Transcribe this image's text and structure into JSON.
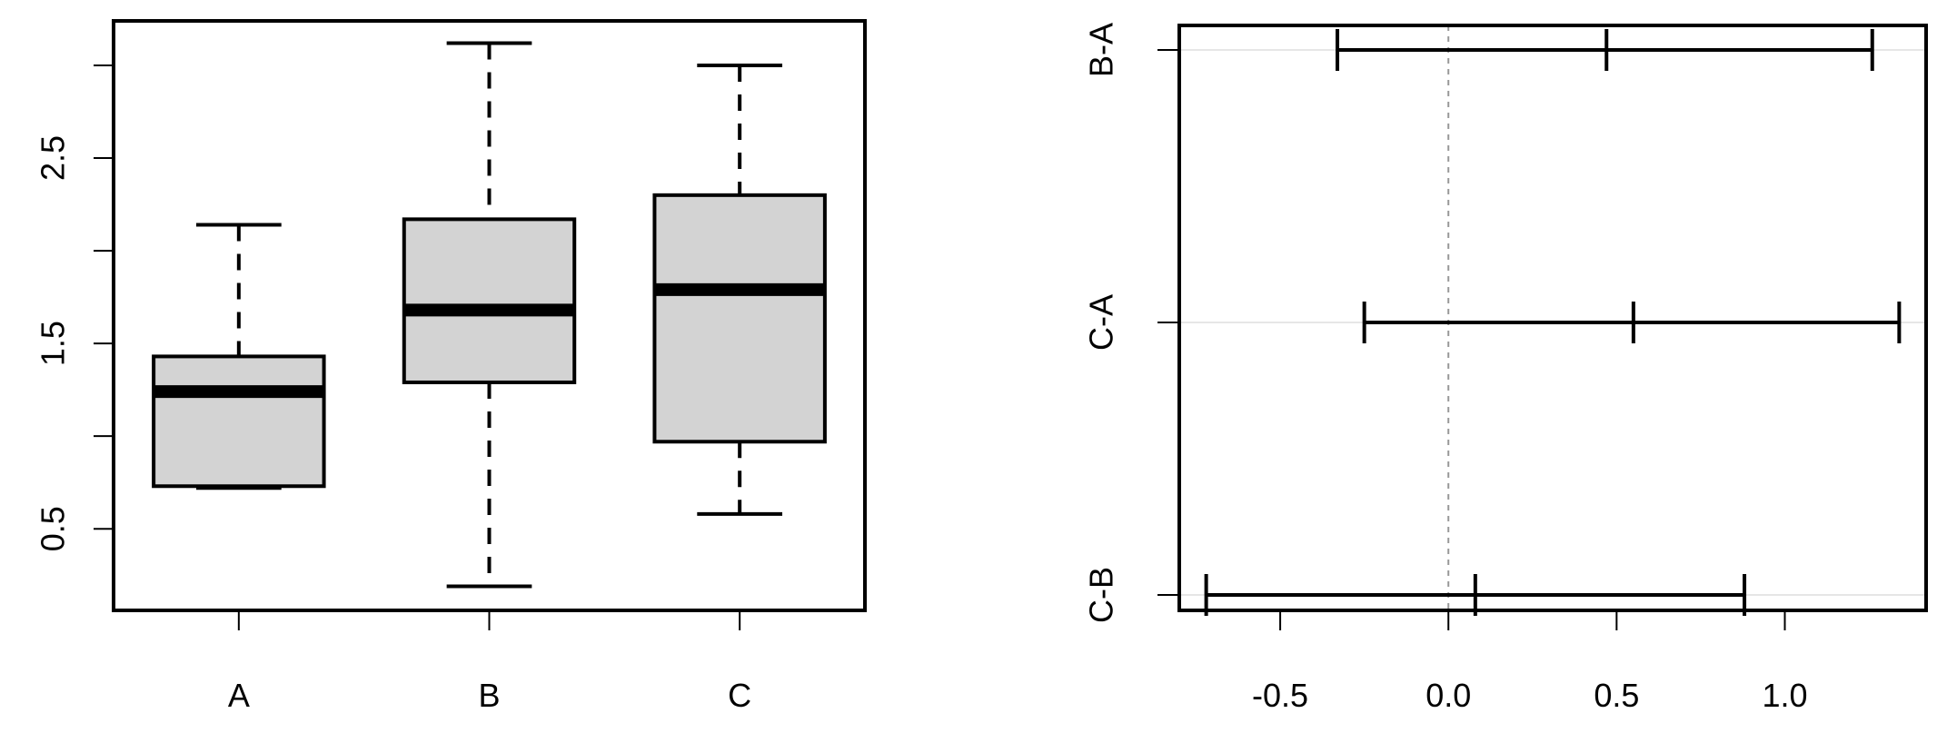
{
  "chart_data": [
    {
      "type": "boxplot",
      "categories": [
        "A",
        "B",
        "C"
      ],
      "boxes": [
        {
          "name": "A",
          "whisker_low": 0.72,
          "q1": 0.73,
          "median": 1.24,
          "q3": 1.43,
          "whisker_high": 2.14
        },
        {
          "name": "B",
          "whisker_low": 0.19,
          "q1": 1.29,
          "median": 1.68,
          "q3": 2.17,
          "whisker_high": 3.12
        },
        {
          "name": "C",
          "whisker_low": 0.58,
          "q1": 0.97,
          "median": 1.79,
          "q3": 2.3,
          "whisker_high": 3.0
        }
      ],
      "yticks": [
        "0.5",
        "1.5",
        "2.5"
      ],
      "yticks_unlabeled": [
        1.0,
        2.0,
        3.0
      ],
      "ylim": [
        0.06,
        3.24
      ],
      "title": "",
      "xlabel": "",
      "ylabel": "",
      "grid": false,
      "fill_color": "#d3d3d3"
    },
    {
      "type": "interval",
      "categories": [
        "B-A",
        "C-A",
        "C-B"
      ],
      "intervals": [
        {
          "name": "B-A",
          "lwr": -0.33,
          "estimate": 0.47,
          "upr": 1.26
        },
        {
          "name": "C-A",
          "lwr": -0.25,
          "estimate": 0.55,
          "upr": 1.34
        },
        {
          "name": "C-B",
          "lwr": -0.72,
          "estimate": 0.08,
          "upr": 0.88
        }
      ],
      "xticks": [
        "-0.5",
        "0.0",
        "0.5",
        "1.0"
      ],
      "xlim": [
        -0.8,
        1.42
      ],
      "reference_line": 0.0,
      "title": "",
      "xlabel": "",
      "ylabel": "",
      "grid": true
    }
  ]
}
